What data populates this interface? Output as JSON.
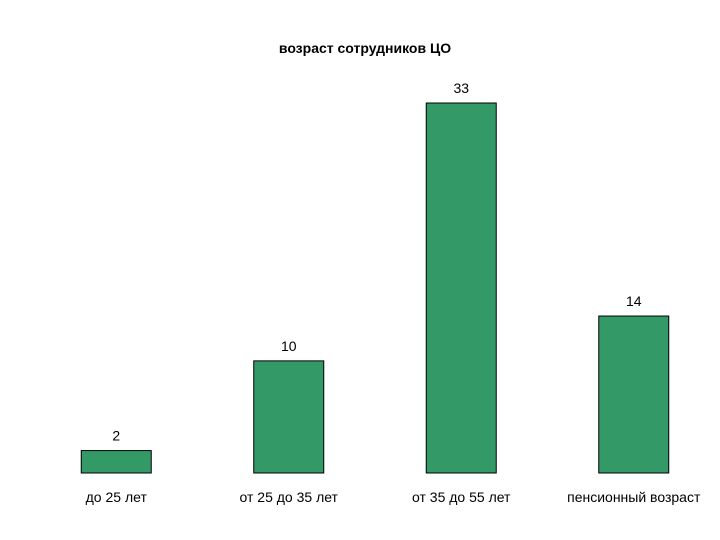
{
  "chart_data": {
    "type": "bar",
    "title": "возраст сотрудников ЦО",
    "categories": [
      "до 25 лет",
      "от 25 до 35 лет",
      "от 35 до 55 лет",
      "пенсионный возраст"
    ],
    "values": [
      2,
      10,
      33,
      14
    ],
    "ylim": [
      0,
      33
    ],
    "bar_color": "#339966",
    "data_labels": true,
    "grid": false,
    "legend": "none"
  }
}
